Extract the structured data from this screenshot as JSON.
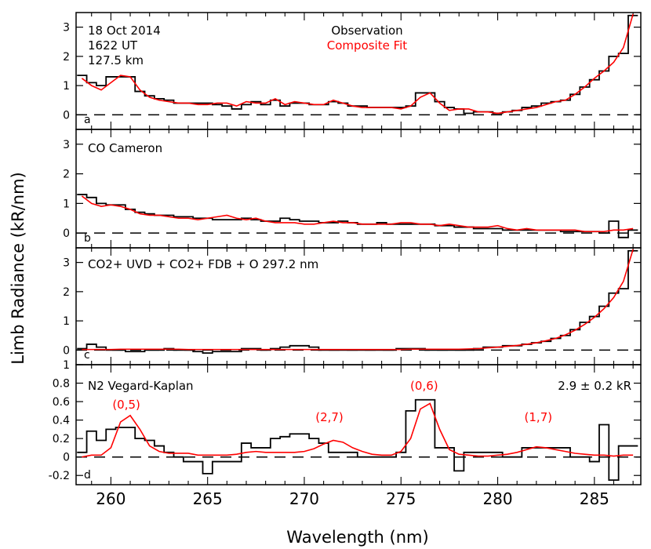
{
  "figure": {
    "ylabel": "Limb Radiance (kR/nm)",
    "xlabel": "Wavelength (nm)",
    "xlim": [
      258.2,
      287.4
    ],
    "xticks": [
      260,
      265,
      270,
      275,
      280,
      285
    ],
    "colors": {
      "observation": "#000000",
      "fit": "#ff0000",
      "zero_line": "#000000"
    }
  },
  "chart_data": [
    {
      "type": "line",
      "panel_letter": "a",
      "annotations": [
        "18 Oct 2014",
        "1622 UT",
        "127.5 km"
      ],
      "legend": {
        "placement": "top-center",
        "entries": [
          {
            "label": "Observation",
            "color": "#000000"
          },
          {
            "label": "Composite Fit",
            "color": "#ff0000"
          }
        ]
      },
      "ylim": [
        -0.5,
        3.5
      ],
      "yticks": [
        0,
        1,
        2,
        3
      ],
      "x": [
        258.5,
        259.0,
        259.5,
        260.0,
        260.5,
        261.0,
        261.5,
        262.0,
        262.5,
        263.0,
        263.5,
        264.0,
        264.5,
        265.0,
        265.5,
        266.0,
        266.5,
        267.0,
        267.5,
        268.0,
        268.5,
        269.0,
        269.5,
        270.0,
        270.5,
        271.0,
        271.5,
        272.0,
        272.5,
        273.0,
        273.5,
        274.0,
        274.5,
        275.0,
        275.5,
        276.0,
        276.5,
        277.0,
        277.5,
        278.0,
        278.5,
        279.0,
        279.5,
        280.0,
        280.5,
        281.0,
        281.5,
        282.0,
        282.5,
        283.0,
        283.5,
        284.0,
        284.5,
        285.0,
        285.5,
        286.0,
        286.5,
        287.0
      ],
      "series": [
        {
          "name": "Observation",
          "style": "step",
          "values": [
            1.35,
            1.1,
            1.0,
            1.3,
            1.3,
            1.3,
            0.8,
            0.65,
            0.55,
            0.5,
            0.4,
            0.4,
            0.4,
            0.4,
            0.35,
            0.3,
            0.2,
            0.35,
            0.45,
            0.35,
            0.5,
            0.3,
            0.4,
            0.4,
            0.35,
            0.35,
            0.45,
            0.4,
            0.3,
            0.3,
            0.25,
            0.25,
            0.25,
            0.25,
            0.3,
            0.75,
            0.75,
            0.45,
            0.25,
            0.2,
            0.05,
            0.1,
            0.1,
            0.05,
            0.1,
            0.15,
            0.25,
            0.3,
            0.4,
            0.45,
            0.5,
            0.7,
            0.95,
            1.2,
            1.5,
            2.0,
            2.1,
            3.4
          ]
        },
        {
          "name": "Composite Fit",
          "style": "line",
          "values": [
            1.25,
            1.0,
            0.85,
            1.1,
            1.35,
            1.3,
            0.85,
            0.6,
            0.5,
            0.45,
            0.4,
            0.4,
            0.35,
            0.35,
            0.4,
            0.4,
            0.3,
            0.45,
            0.4,
            0.4,
            0.55,
            0.35,
            0.45,
            0.4,
            0.35,
            0.35,
            0.5,
            0.4,
            0.3,
            0.25,
            0.25,
            0.25,
            0.25,
            0.2,
            0.3,
            0.6,
            0.75,
            0.4,
            0.15,
            0.2,
            0.2,
            0.1,
            0.1,
            0.05,
            0.1,
            0.15,
            0.2,
            0.25,
            0.35,
            0.45,
            0.5,
            0.7,
            0.95,
            1.25,
            1.5,
            1.8,
            2.3,
            3.45
          ]
        }
      ]
    },
    {
      "type": "line",
      "panel_letter": "b",
      "annotations": [
        "CO Cameron"
      ],
      "ylim": [
        -0.5,
        3.5
      ],
      "yticks": [
        0,
        1,
        2,
        3
      ],
      "x": [
        258.5,
        259.0,
        259.5,
        260.0,
        260.5,
        261.0,
        261.5,
        262.0,
        262.5,
        263.0,
        263.5,
        264.0,
        264.5,
        265.0,
        265.5,
        266.0,
        266.5,
        267.0,
        267.5,
        268.0,
        268.5,
        269.0,
        269.5,
        270.0,
        270.5,
        271.0,
        271.5,
        272.0,
        272.5,
        273.0,
        273.5,
        274.0,
        274.5,
        275.0,
        275.5,
        276.0,
        276.5,
        277.0,
        277.5,
        278.0,
        278.5,
        279.0,
        279.5,
        280.0,
        280.5,
        281.0,
        281.5,
        282.0,
        282.5,
        283.0,
        283.5,
        284.0,
        284.5,
        285.0,
        285.5,
        286.0,
        286.5,
        287.0
      ],
      "series": [
        {
          "name": "Observation",
          "style": "step",
          "values": [
            1.3,
            1.2,
            1.0,
            0.95,
            0.95,
            0.8,
            0.7,
            0.65,
            0.6,
            0.6,
            0.55,
            0.55,
            0.5,
            0.5,
            0.45,
            0.45,
            0.45,
            0.5,
            0.45,
            0.4,
            0.4,
            0.5,
            0.45,
            0.4,
            0.4,
            0.35,
            0.35,
            0.4,
            0.35,
            0.3,
            0.3,
            0.35,
            0.3,
            0.3,
            0.3,
            0.3,
            0.3,
            0.25,
            0.25,
            0.2,
            0.2,
            0.15,
            0.15,
            0.15,
            0.1,
            0.1,
            0.1,
            0.1,
            0.1,
            0.1,
            0.05,
            0.05,
            0.05,
            0.05,
            0.0,
            0.4,
            -0.15,
            0.1
          ]
        },
        {
          "name": "Composite Fit",
          "style": "line",
          "values": [
            1.25,
            1.0,
            0.9,
            0.95,
            0.9,
            0.8,
            0.65,
            0.6,
            0.6,
            0.55,
            0.5,
            0.5,
            0.45,
            0.5,
            0.55,
            0.6,
            0.5,
            0.45,
            0.5,
            0.4,
            0.35,
            0.35,
            0.35,
            0.3,
            0.3,
            0.35,
            0.4,
            0.35,
            0.35,
            0.3,
            0.3,
            0.3,
            0.3,
            0.35,
            0.35,
            0.3,
            0.3,
            0.25,
            0.3,
            0.25,
            0.2,
            0.2,
            0.2,
            0.25,
            0.15,
            0.1,
            0.15,
            0.1,
            0.1,
            0.1,
            0.1,
            0.1,
            0.05,
            0.05,
            0.05,
            0.1,
            0.1,
            0.15
          ]
        }
      ]
    },
    {
      "type": "line",
      "panel_letter": "c",
      "annotations": [
        "CO2+ UVD + CO2+ FDB + O 297.2 nm"
      ],
      "ylim": [
        -0.5,
        3.5
      ],
      "yticks": [
        0,
        1,
        2,
        3
      ],
      "x": [
        258.5,
        259.0,
        259.5,
        260.0,
        260.5,
        261.0,
        261.5,
        262.0,
        262.5,
        263.0,
        263.5,
        264.0,
        264.5,
        265.0,
        265.5,
        266.0,
        266.5,
        267.0,
        267.5,
        268.0,
        268.5,
        269.0,
        269.5,
        270.0,
        270.5,
        271.0,
        271.5,
        272.0,
        272.5,
        273.0,
        273.5,
        274.0,
        274.5,
        275.0,
        275.5,
        276.0,
        276.5,
        277.0,
        277.5,
        278.0,
        278.5,
        279.0,
        279.5,
        280.0,
        280.5,
        281.0,
        281.5,
        282.0,
        282.5,
        283.0,
        283.5,
        284.0,
        284.5,
        285.0,
        285.5,
        286.0,
        286.5,
        287.0
      ],
      "series": [
        {
          "name": "Observation",
          "style": "step",
          "values": [
            0.05,
            0.2,
            0.1,
            0.0,
            0.0,
            -0.05,
            -0.05,
            0.0,
            0.0,
            0.05,
            0.0,
            0.0,
            -0.05,
            -0.1,
            -0.05,
            -0.05,
            -0.05,
            0.05,
            0.05,
            0.0,
            0.05,
            0.1,
            0.15,
            0.15,
            0.1,
            0.0,
            0.0,
            0.0,
            0.0,
            0.0,
            0.0,
            0.0,
            0.0,
            0.05,
            0.05,
            0.05,
            0.0,
            0.0,
            0.0,
            0.0,
            0.0,
            0.05,
            0.1,
            0.1,
            0.15,
            0.15,
            0.2,
            0.25,
            0.3,
            0.4,
            0.5,
            0.7,
            0.95,
            1.15,
            1.5,
            1.95,
            2.1,
            3.4
          ]
        },
        {
          "name": "Composite Fit",
          "style": "line",
          "values": [
            0.02,
            0.02,
            0.02,
            0.02,
            0.03,
            0.03,
            0.03,
            0.03,
            0.03,
            0.03,
            0.03,
            0.02,
            0.02,
            0.02,
            0.02,
            0.02,
            0.02,
            0.02,
            0.02,
            0.02,
            0.02,
            0.02,
            0.02,
            0.02,
            0.02,
            0.02,
            0.02,
            0.02,
            0.02,
            0.02,
            0.02,
            0.02,
            0.02,
            0.02,
            0.03,
            0.03,
            0.03,
            0.03,
            0.03,
            0.03,
            0.04,
            0.05,
            0.08,
            0.1,
            0.13,
            0.16,
            0.2,
            0.25,
            0.32,
            0.4,
            0.52,
            0.68,
            0.88,
            1.12,
            1.42,
            1.8,
            2.35,
            3.45
          ]
        }
      ]
    },
    {
      "type": "line",
      "panel_letter": "d",
      "annotations": [
        "N2 Vegard-Kaplan",
        "2.9 ± 0.2 kR",
        "(0,5)",
        "(2,7)",
        "(0,6)",
        "(1,7)"
      ],
      "ylim": [
        -0.3,
        1.0
      ],
      "yticks": [
        -0.2,
        0.0,
        0.2,
        0.4,
        0.6,
        0.8,
        1.0
      ],
      "x": [
        258.5,
        259.0,
        259.5,
        260.0,
        260.5,
        261.0,
        261.5,
        262.0,
        262.5,
        263.0,
        263.5,
        264.0,
        264.5,
        265.0,
        265.5,
        266.0,
        266.5,
        267.0,
        267.5,
        268.0,
        268.5,
        269.0,
        269.5,
        270.0,
        270.5,
        271.0,
        271.5,
        272.0,
        272.5,
        273.0,
        273.5,
        274.0,
        274.5,
        275.0,
        275.5,
        276.0,
        276.5,
        277.0,
        277.5,
        278.0,
        278.5,
        279.0,
        279.5,
        280.0,
        280.5,
        281.0,
        281.5,
        282.0,
        282.5,
        283.0,
        283.5,
        284.0,
        284.5,
        285.0,
        285.5,
        286.0,
        286.5,
        287.0
      ],
      "series": [
        {
          "name": "Observation",
          "style": "step",
          "values": [
            0.05,
            0.28,
            0.18,
            0.3,
            0.32,
            0.32,
            0.2,
            0.18,
            0.12,
            0.05,
            0.0,
            -0.05,
            -0.05,
            -0.18,
            -0.05,
            -0.05,
            -0.05,
            0.15,
            0.1,
            0.1,
            0.2,
            0.22,
            0.25,
            0.25,
            0.2,
            0.15,
            0.05,
            0.05,
            0.05,
            0.0,
            0.0,
            0.0,
            0.0,
            0.05,
            0.5,
            0.62,
            0.62,
            0.1,
            0.1,
            -0.15,
            0.05,
            0.05,
            0.05,
            0.05,
            0.0,
            0.0,
            0.1,
            0.1,
            0.1,
            0.1,
            0.1,
            0.0,
            0.0,
            -0.05,
            0.35,
            -0.25,
            0.12,
            0.12
          ]
        },
        {
          "name": "Composite Fit",
          "style": "line",
          "values": [
            0.0,
            0.02,
            0.02,
            0.1,
            0.38,
            0.45,
            0.3,
            0.12,
            0.06,
            0.04,
            0.04,
            0.04,
            0.02,
            0.02,
            0.02,
            0.02,
            0.03,
            0.05,
            0.06,
            0.05,
            0.05,
            0.05,
            0.05,
            0.06,
            0.09,
            0.14,
            0.18,
            0.16,
            0.1,
            0.06,
            0.03,
            0.02,
            0.02,
            0.06,
            0.2,
            0.52,
            0.58,
            0.3,
            0.08,
            0.03,
            0.02,
            0.01,
            0.01,
            0.02,
            0.03,
            0.05,
            0.08,
            0.11,
            0.1,
            0.08,
            0.06,
            0.04,
            0.03,
            0.02,
            0.02,
            0.01,
            0.02,
            0.02
          ]
        }
      ]
    }
  ]
}
